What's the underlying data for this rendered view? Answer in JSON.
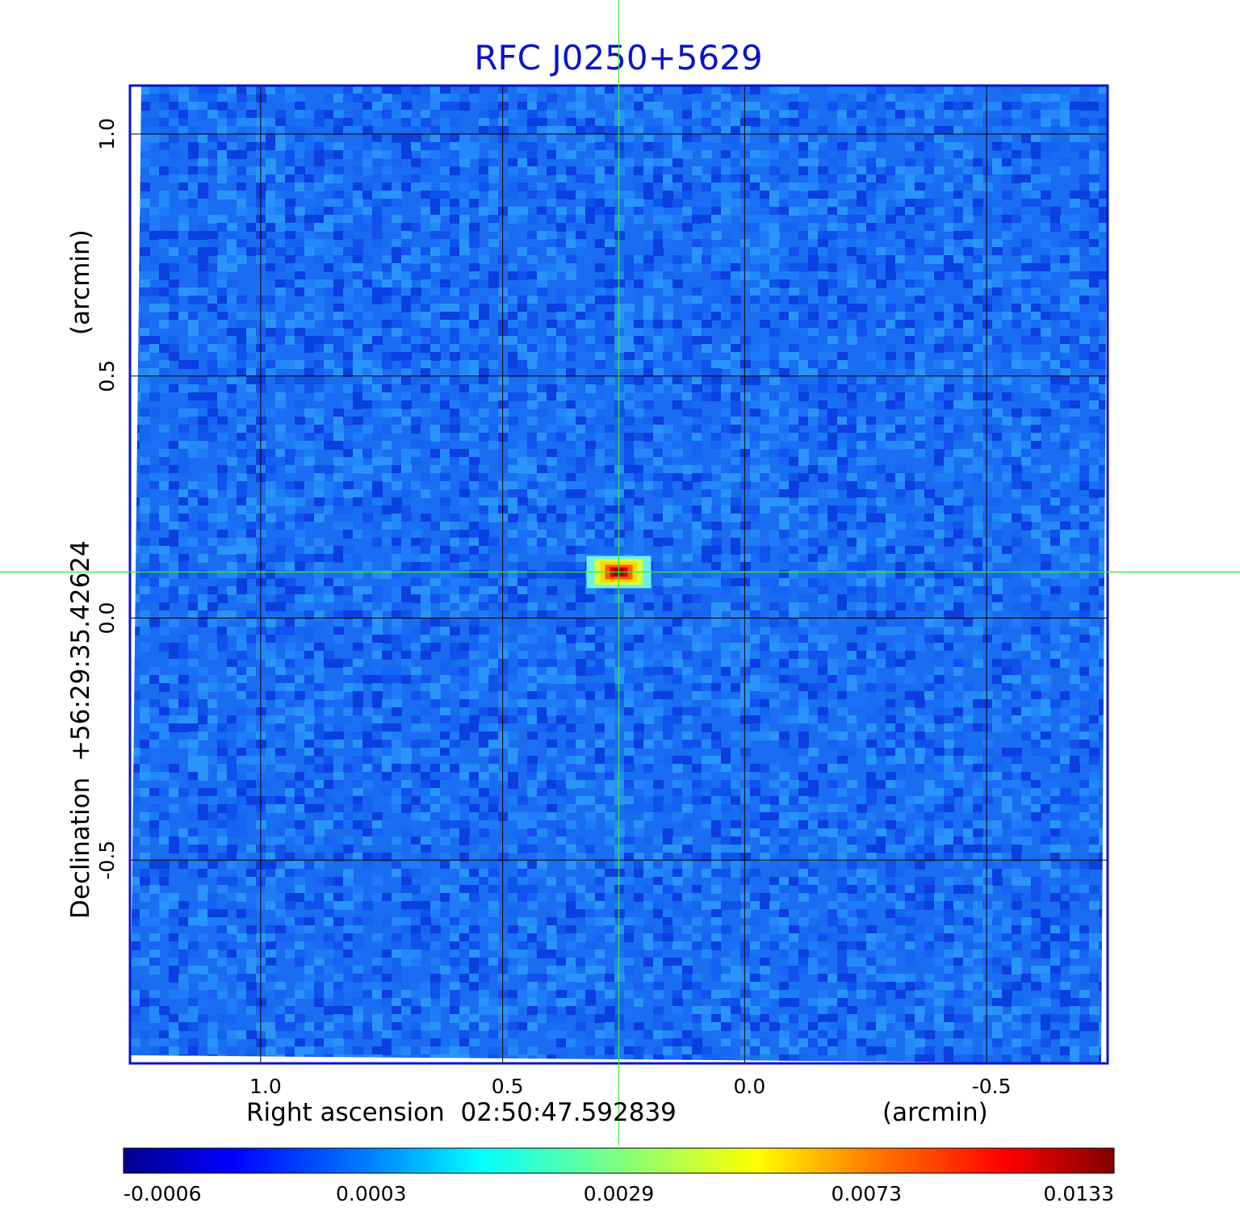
{
  "chart_data": {
    "type": "heatmap",
    "title": "RFC J0250+5629",
    "xlabel": "Right ascension  02:50:47.592839",
    "xunit": "(arcmin)",
    "ylabel": "Declination  +56:29:35.42624",
    "yunit": "(arcmin)",
    "x_ticks": [
      "1.0",
      "0.5",
      "0.0",
      "-0.5"
    ],
    "x_tick_values": [
      1.0,
      0.5,
      0.0,
      -0.5
    ],
    "y_ticks": [
      "1.0",
      "0.5",
      "0.0",
      "-0.5"
    ],
    "y_tick_values": [
      1.0,
      0.5,
      0.0,
      -0.5
    ],
    "xlim": [
      1.27,
      -0.75
    ],
    "ylim": [
      -0.92,
      1.1
    ],
    "grid": true,
    "crosshair": {
      "x": 0.26,
      "y": 0.095
    },
    "source_peak": {
      "x": 0.26,
      "y": 0.095,
      "value": 0.0133
    },
    "background_range": [
      -0.0006,
      0.0008
    ],
    "colorbar": {
      "ticks": [
        "-0.0006",
        "0.0003",
        "0.0029",
        "0.0073",
        "0.0133"
      ],
      "tick_values": [
        -0.0006,
        0.0003,
        0.0029,
        0.0073,
        0.0133
      ],
      "colors": [
        "#00008c",
        "#0000ff",
        "#0080ff",
        "#00ffff",
        "#80ff80",
        "#ffff00",
        "#ff8000",
        "#ff0000",
        "#800000"
      ]
    },
    "colors": {
      "frame": "#0a14c8",
      "grid": "#000000",
      "crosshair": "#33ee33"
    }
  }
}
